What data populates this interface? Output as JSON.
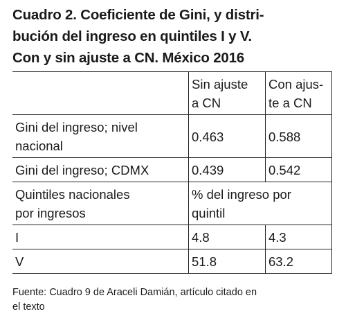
{
  "title": "Cuadro 2. Coeficiente de Gini, y distri-\nbución del ingreso en quintiles I y V.\nCon y sin ajuste a CN. México 2016",
  "table": {
    "columns": [
      "Sin ajuste\na CN",
      "Con ajus-\nte a CN"
    ],
    "rows": [
      {
        "label": "Gini del ingreso; nivel\nnacional",
        "values": [
          0.463,
          0.588
        ]
      },
      {
        "label": "Gini del ingreso; CDMX",
        "values": [
          0.439,
          0.542
        ]
      },
      {
        "label": "Quintiles nacionales\npor ingresos",
        "span": "% del ingreso por\nquintil"
      },
      {
        "label": "I",
        "values": [
          4.8,
          4.3
        ]
      },
      {
        "label": "V",
        "values": [
          51.8,
          63.2
        ]
      }
    ]
  },
  "source": "Fuente: Cuadro 9 de Araceli Damián, artículo citado en\nel texto"
}
